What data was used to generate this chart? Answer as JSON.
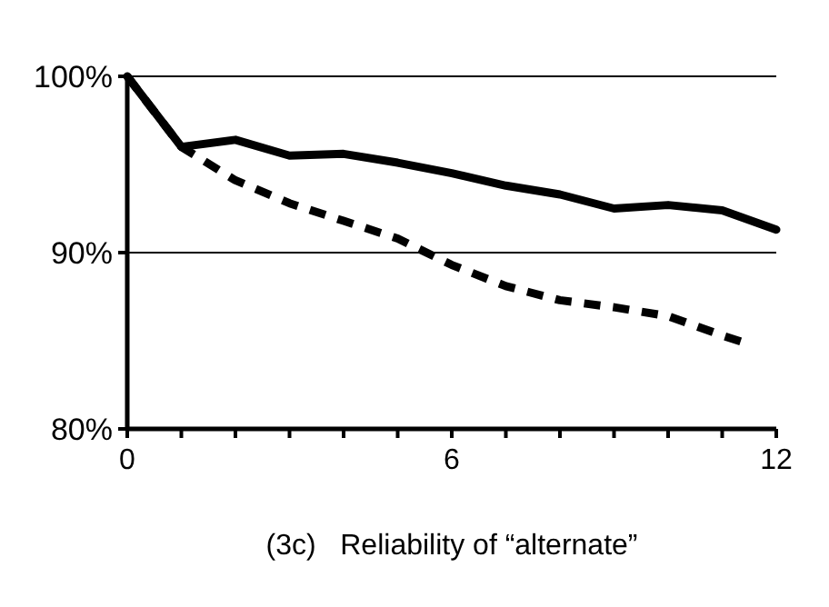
{
  "chart_data": {
    "type": "line",
    "xlabel": "(3c)   Reliability of “alternate”",
    "xlim": [
      0,
      12
    ],
    "xticks": [
      0,
      {
        "value": 1,
        "label": null
      },
      {
        "value": 2,
        "label": null
      },
      {
        "value": 3,
        "label": null
      },
      {
        "value": 4,
        "label": null
      },
      {
        "value": 5,
        "label": null
      },
      6,
      {
        "value": 7,
        "label": null
      },
      {
        "value": 8,
        "label": null
      },
      {
        "value": 9,
        "label": null
      },
      {
        "value": 10,
        "label": null
      },
      {
        "value": 11,
        "label": null
      },
      12
    ],
    "ylim": [
      80,
      100
    ],
    "yticks": [
      {
        "value": 80,
        "label": "80%"
      },
      {
        "value": 90,
        "label": "90%"
      },
      {
        "value": 100,
        "label": "100%"
      }
    ],
    "grid": "y",
    "marker": "none",
    "series": [
      {
        "color": "#000000",
        "line_style": "solid",
        "x": [
          0,
          1,
          2,
          3,
          4,
          5,
          6,
          7,
          8,
          9,
          10,
          11,
          12
        ],
        "values": [
          100,
          96.0,
          96.4,
          95.5,
          95.6,
          95.1,
          94.5,
          93.8,
          93.3,
          92.5,
          92.7,
          92.4,
          91.3
        ]
      },
      {
        "color": "#000000",
        "line_style": "dashed",
        "x": [
          0,
          1,
          2,
          3,
          4,
          5,
          6,
          7,
          8,
          9,
          10,
          11,
          11.4
        ],
        "values": [
          100,
          96.0,
          94.1,
          92.8,
          91.8,
          90.8,
          89.3,
          88.1,
          87.3,
          86.9,
          86.4,
          85.3,
          84.9
        ]
      }
    ]
  }
}
